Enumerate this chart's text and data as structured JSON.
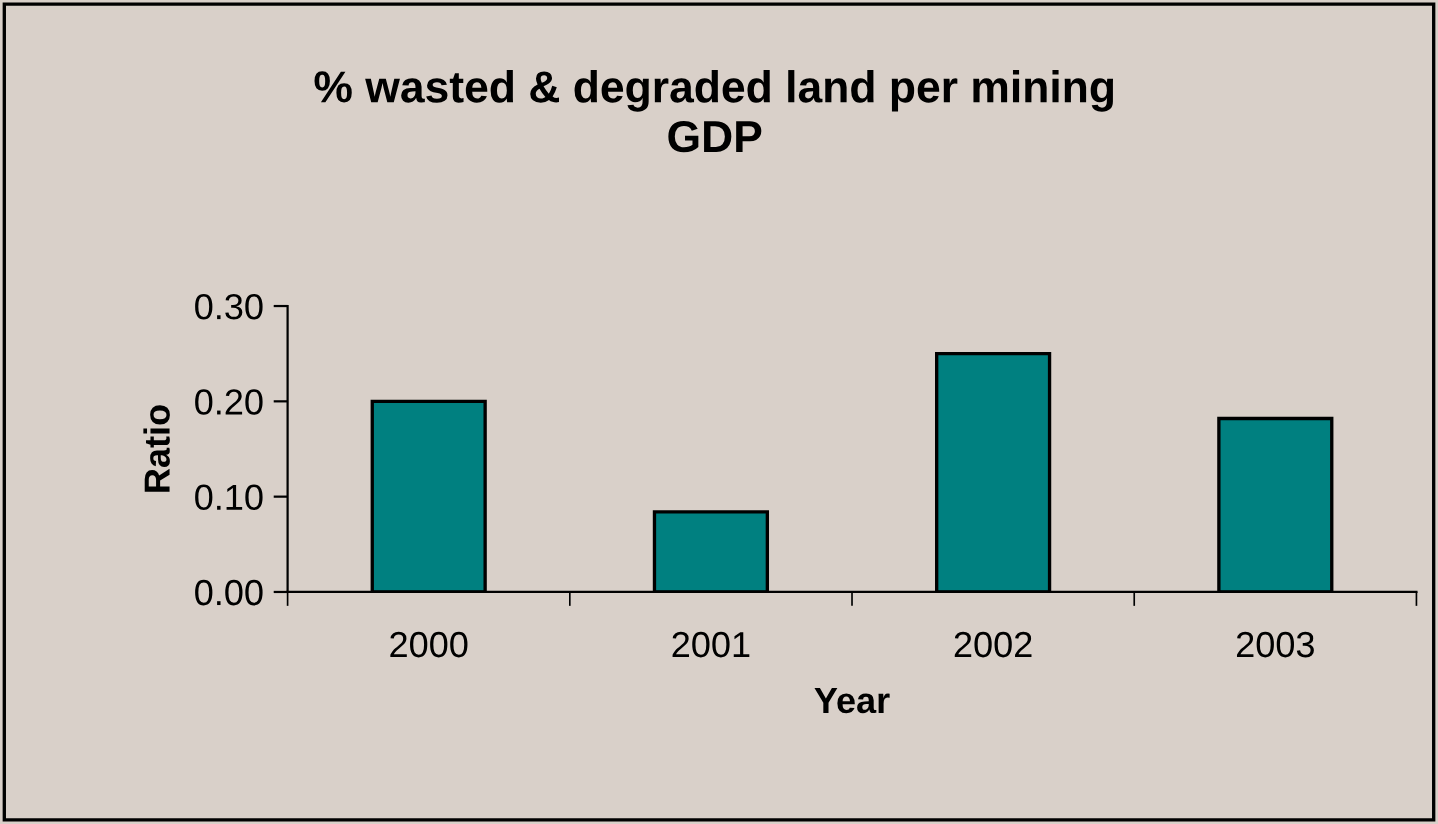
{
  "chart_data": {
    "type": "bar",
    "title": "% wasted & degraded land per mining\nGDP",
    "xlabel": "Year",
    "ylabel": "Ratio",
    "categories": [
      "2000",
      "2001",
      "2002",
      "2003"
    ],
    "values": [
      0.2,
      0.084,
      0.25,
      0.182
    ],
    "color": "#008080",
    "ylim": [
      0,
      0.3
    ],
    "yticks": [
      {
        "value": 0,
        "label": "0.00"
      },
      {
        "value": 0.1,
        "label": "0.10"
      },
      {
        "value": 0.2,
        "label": "0.20"
      },
      {
        "value": 0.3,
        "label": "0.30"
      }
    ],
    "grid": false,
    "legend": false
  }
}
